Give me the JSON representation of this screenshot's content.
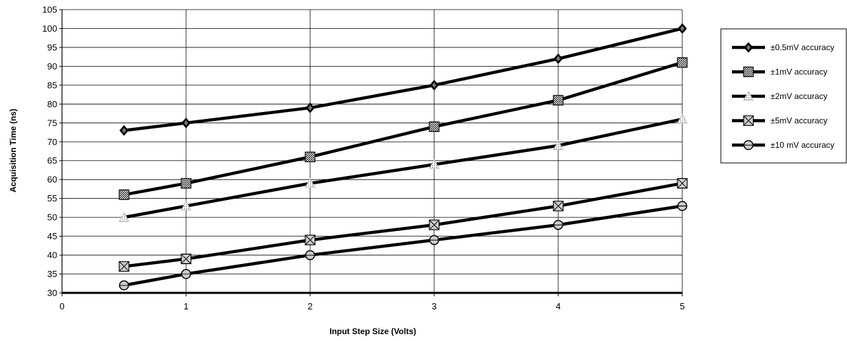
{
  "chart_data": {
    "type": "line",
    "title": "",
    "xlabel": "Input Step Size (Volts)",
    "ylabel": "Acquisition Time (ns)",
    "xlim": [
      0,
      5
    ],
    "ylim": [
      30,
      105
    ],
    "x_ticks": [
      0,
      1,
      2,
      3,
      4,
      5
    ],
    "y_ticks": [
      30,
      35,
      40,
      45,
      50,
      55,
      60,
      65,
      70,
      75,
      80,
      85,
      90,
      95,
      100,
      105
    ],
    "grid": true,
    "legend_position": "right",
    "x": [
      0.5,
      1,
      2,
      3,
      4,
      5
    ],
    "series": [
      {
        "name": "±0.5mV accuracy",
        "marker": "diamond-icon",
        "values": [
          73,
          75,
          79,
          85,
          92,
          100
        ]
      },
      {
        "name": "±1mV accuracy",
        "marker": "hatched-square-icon",
        "values": [
          56,
          59,
          66,
          74,
          81,
          91
        ]
      },
      {
        "name": "±2mV accuracy",
        "marker": "dotted-triangle-icon",
        "values": [
          50,
          53,
          59,
          64,
          69,
          76
        ]
      },
      {
        "name": "±5mV accuracy",
        "marker": "crossed-square-icon",
        "values": [
          37,
          39,
          44,
          48,
          53,
          59
        ]
      },
      {
        "name": "±10 mV accuracy",
        "marker": "circle-cross-icon",
        "values": [
          32,
          35,
          40,
          44,
          48,
          53
        ]
      }
    ],
    "colors": {
      "line": "#000000",
      "grid": "#000000",
      "background": "#ffffff"
    }
  }
}
